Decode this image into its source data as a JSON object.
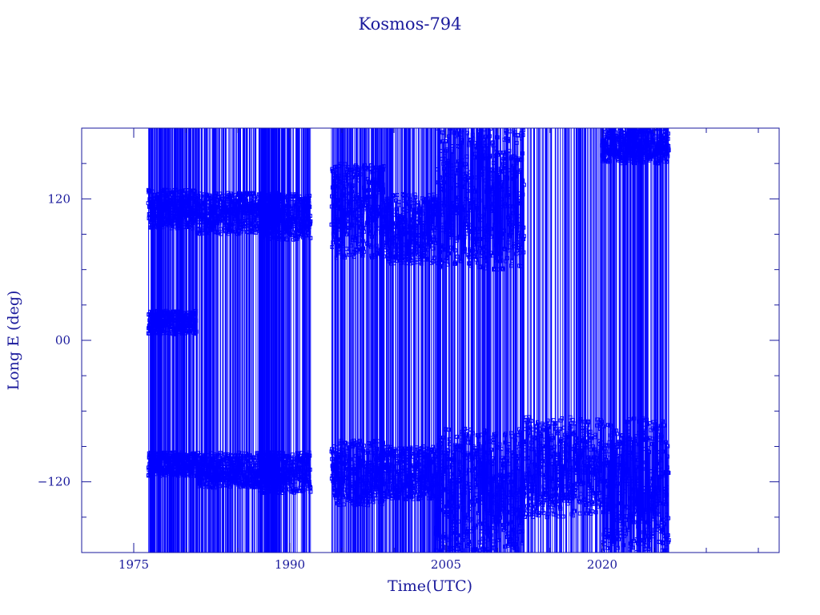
{
  "chart_data": {
    "type": "scatter",
    "title": "Kosmos-794",
    "xlabel": "Time(UTC)",
    "ylabel": "Long E (deg)",
    "xlim": [
      1970,
      2037
    ],
    "ylim": [
      -180,
      180
    ],
    "x_ticks": [
      {
        "value": 1975,
        "label": "1975"
      },
      {
        "value": 1990,
        "label": "1990"
      },
      {
        "value": 2005,
        "label": "2005"
      },
      {
        "value": 2020,
        "label": "2020"
      }
    ],
    "y_ticks": [
      {
        "value": 120,
        "label": "120"
      },
      {
        "value": 0,
        "label": "00"
      },
      {
        "value": -120,
        "label": "−120"
      }
    ],
    "grid": false,
    "marker": "square",
    "series_color": "#0000ff",
    "axis_color": "#1a1a9c",
    "series": [
      {
        "data_range": [
          1976.4,
          2026.4
        ],
        "gaps": [
          [
            1992.0,
            1994.0
          ]
        ],
        "bands": [
          {
            "x": [
              1976.4,
              1981.0
            ],
            "y": [
              95,
              128
            ]
          },
          {
            "x": [
              1976.4,
              1981.0
            ],
            "y": [
              5,
              25
            ]
          },
          {
            "x": [
              1976.4,
              1981.0
            ],
            "y": [
              -115,
              -95
            ]
          },
          {
            "x": [
              1981.0,
              1989.0
            ],
            "y": [
              90,
              125
            ]
          },
          {
            "x": [
              1981.0,
              1989.0
            ],
            "y": [
              -125,
              -95
            ]
          },
          {
            "x": [
              1987.0,
              1992.0
            ],
            "y": [
              85,
              125
            ]
          },
          {
            "x": [
              1987.0,
              1992.0
            ],
            "y": [
              -130,
              -95
            ]
          },
          {
            "x": [
              1994.0,
              1999.0
            ],
            "y": [
              70,
              150
            ]
          },
          {
            "x": [
              1994.0,
              1999.0
            ],
            "y": [
              -140,
              -85
            ]
          },
          {
            "x": [
              1999.0,
              2004.0
            ],
            "y": [
              65,
              125
            ]
          },
          {
            "x": [
              1999.0,
              2004.0
            ],
            "y": [
              -135,
              -90
            ]
          },
          {
            "x": [
              2004.0,
              2012.5
            ],
            "y": [
              60,
              180
            ]
          },
          {
            "x": [
              2004.0,
              2012.5
            ],
            "y": [
              -180,
              -75
            ]
          },
          {
            "x": [
              2012.5,
              2020.0
            ],
            "y": [
              -150,
              -65
            ]
          },
          {
            "x": [
              2020.0,
              2026.4
            ],
            "y": [
              150,
              180
            ]
          },
          {
            "x": [
              2020.0,
              2026.4
            ],
            "y": [
              -180,
              -65
            ]
          }
        ]
      }
    ]
  }
}
